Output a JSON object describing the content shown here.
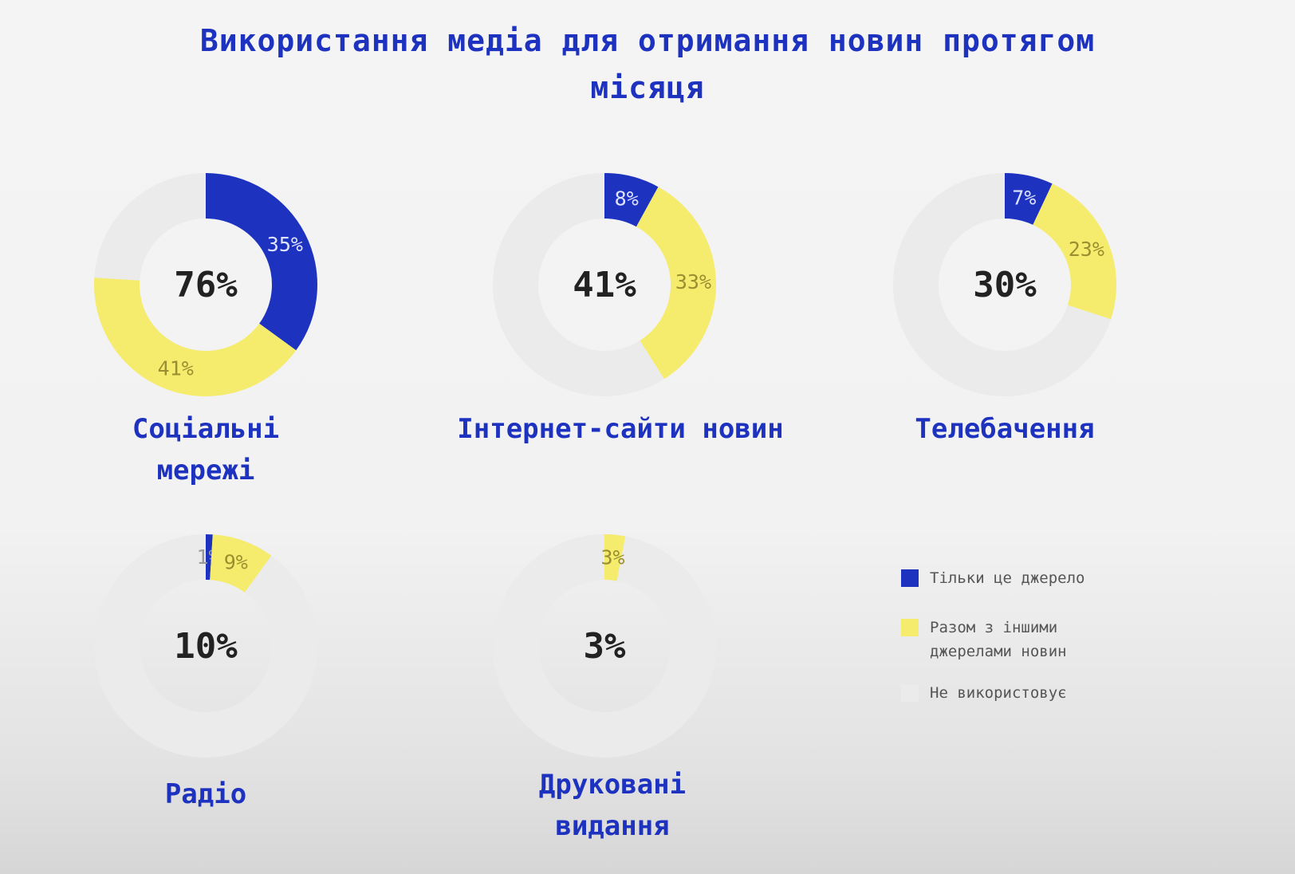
{
  "title": "Використання медіа для отримання новин протягом місяця",
  "colors": {
    "only_source": "#1d33c0",
    "with_others": "#f5ec6e",
    "not_used": "#ebebeb",
    "title": "#1d33c0"
  },
  "legend": {
    "only_source": "Тільки це джерело",
    "with_others": "Разом з іншими джерелами новин",
    "not_used": "Не використовує"
  },
  "chart_data": {
    "type": "donut",
    "unit": "%",
    "charts": [
      {
        "category": "Соціальні мережі",
        "total": 76,
        "total_label": "76%",
        "series": [
          {
            "name": "Тільки це джерело",
            "value": 35,
            "label": "35%"
          },
          {
            "name": "Разом з іншими джерелами новин",
            "value": 41,
            "label": "41%"
          }
        ]
      },
      {
        "category": "Інтернет-сайти новин",
        "total": 41,
        "total_label": "41%",
        "series": [
          {
            "name": "Тільки це джерело",
            "value": 8,
            "label": "8%"
          },
          {
            "name": "Разом з іншими джерелами новин",
            "value": 33,
            "label": "33%"
          }
        ]
      },
      {
        "category": "Телебачення",
        "total": 30,
        "total_label": "30%",
        "series": [
          {
            "name": "Тільки це джерело",
            "value": 7,
            "label": "7%"
          },
          {
            "name": "Разом з іншими джерелами новин",
            "value": 23,
            "label": "23%"
          }
        ]
      },
      {
        "category": "Радіо",
        "total": 10,
        "total_label": "10%",
        "series": [
          {
            "name": "Тільки це джерело",
            "value": 1,
            "label": "1%"
          },
          {
            "name": "Разом з іншими джерелами новин",
            "value": 9,
            "label": "9%"
          }
        ]
      },
      {
        "category": "Друковані видання",
        "total": 3,
        "total_label": "3%",
        "series": [
          {
            "name": "Тільки це джерело",
            "value": 0,
            "label": ""
          },
          {
            "name": "Разом з іншими джерелами новин",
            "value": 3,
            "label": "3%"
          }
        ]
      }
    ]
  }
}
